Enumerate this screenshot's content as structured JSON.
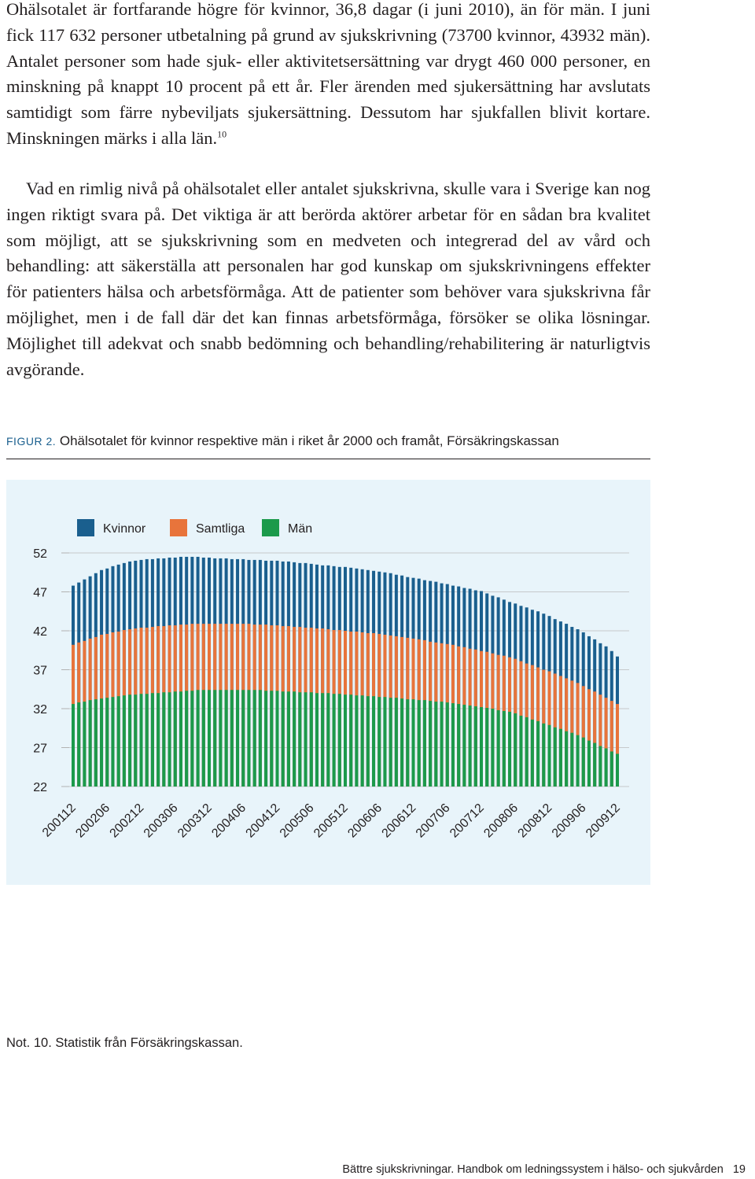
{
  "paragraphs": [
    {
      "text": "Ohälsotalet är fortfarande högre för kvinnor, 36,8 dagar (i juni 2010), än för män. I juni fick 117 632 personer utbetalning på grund av sjukskrivning (73700 kvinnor, 43932 män). Antalet personer som hade sjuk- eller aktivitetsersättning var drygt 460 000 personer, en minskning på knappt 10 procent på ett år. Fler ärenden med sjukersättning har avslutats samtidigt som färre nybeviljats sjukersättning. Dessutom har sjukfallen blivit kortare. Minskningen märks i alla län.",
      "footnote_ref": "10"
    },
    {
      "text": "Vad en rimlig nivå på ohälsotalet eller antalet sjukskrivna, skulle vara i Sverige kan nog ingen riktigt svara på. Det viktiga är att berörda aktörer arbetar för en sådan bra kvalitet som möjligt, att se sjukskrivning som en medveten och integrerad del av vård och behandling: att säkerställa att personalen har god kunskap om sjukskrivningens effekter för patienters hälsa och arbetsförmåga. Att de patienter som behöver vara sjukskrivna får möjlighet, men i de fall där det kan finnas arbetsförmåga, försöker se olika lösningar. Möjlighet till adekvat och snabb bedömning och behandling/rehabilitering är naturligtvis avgörande."
    }
  ],
  "figure": {
    "label": "FIGUR 2.",
    "caption": "Ohälsotalet för kvinnor respektive män i riket år 2000 och framåt, Försäkringskassan"
  },
  "chart_data": {
    "type": "bar",
    "grid": true,
    "ylim": [
      22,
      52
    ],
    "yticks": [
      22,
      27,
      32,
      37,
      42,
      47,
      52
    ],
    "categories": [
      "200112",
      null,
      null,
      null,
      null,
      null,
      "200206",
      null,
      null,
      null,
      null,
      null,
      "200212",
      null,
      null,
      null,
      null,
      null,
      "200306",
      null,
      null,
      null,
      null,
      null,
      "200312",
      null,
      null,
      null,
      null,
      null,
      "200406",
      null,
      null,
      null,
      null,
      null,
      "200412",
      null,
      null,
      null,
      null,
      null,
      "200506",
      null,
      null,
      null,
      null,
      null,
      "200512",
      null,
      null,
      null,
      null,
      null,
      "200606",
      null,
      null,
      null,
      null,
      null,
      "200612",
      null,
      null,
      null,
      null,
      null,
      "200706",
      null,
      null,
      null,
      null,
      null,
      "200712",
      null,
      null,
      null,
      null,
      null,
      "200806",
      null,
      null,
      null,
      null,
      null,
      "200812",
      null,
      null,
      null,
      null,
      null,
      "200906",
      null,
      null,
      null,
      null,
      null,
      "200912"
    ],
    "series": [
      {
        "name": "Kvinnor",
        "color": "#1a5f8e",
        "values": [
          47.8,
          48.2,
          48.6,
          49.0,
          49.4,
          49.8,
          50.0,
          50.3,
          50.5,
          50.7,
          50.9,
          51.0,
          51.1,
          51.2,
          51.2,
          51.3,
          51.3,
          51.4,
          51.4,
          51.5,
          51.5,
          51.5,
          51.5,
          51.4,
          51.4,
          51.3,
          51.3,
          51.3,
          51.2,
          51.2,
          51.2,
          51.1,
          51.1,
          51.1,
          51.0,
          51.0,
          51.0,
          50.9,
          50.9,
          50.8,
          50.7,
          50.7,
          50.6,
          50.5,
          50.4,
          50.4,
          50.3,
          50.2,
          50.2,
          50.1,
          50.0,
          49.9,
          49.8,
          49.7,
          49.6,
          49.5,
          49.4,
          49.2,
          49.1,
          48.9,
          48.8,
          48.7,
          48.5,
          48.4,
          48.3,
          48.1,
          48.0,
          47.8,
          47.7,
          47.5,
          47.4,
          47.2,
          47.1,
          46.8,
          46.5,
          46.3,
          46.0,
          45.7,
          45.5,
          45.2,
          45.0,
          44.7,
          44.5,
          44.2,
          43.9,
          43.5,
          43.2,
          42.9,
          42.5,
          42.2,
          41.8,
          41.3,
          40.9,
          40.4,
          40.0,
          39.4,
          38.7
        ]
      },
      {
        "name": "Samtliga",
        "color": "#e8743b",
        "values": [
          40.2,
          40.5,
          40.7,
          41.0,
          41.2,
          41.5,
          41.6,
          41.8,
          41.9,
          42.1,
          42.2,
          42.3,
          42.4,
          42.4,
          42.5,
          42.6,
          42.6,
          42.7,
          42.7,
          42.8,
          42.8,
          42.9,
          42.9,
          42.9,
          42.9,
          42.9,
          42.9,
          42.9,
          42.9,
          42.9,
          42.9,
          42.9,
          42.8,
          42.8,
          42.8,
          42.7,
          42.7,
          42.6,
          42.6,
          42.5,
          42.5,
          42.4,
          42.4,
          42.3,
          42.3,
          42.2,
          42.1,
          42.1,
          42.0,
          41.9,
          41.9,
          41.8,
          41.7,
          41.7,
          41.6,
          41.5,
          41.4,
          41.3,
          41.2,
          41.1,
          41.0,
          40.9,
          40.8,
          40.6,
          40.5,
          40.4,
          40.3,
          40.2,
          40.0,
          39.9,
          39.7,
          39.6,
          39.4,
          39.3,
          39.1,
          38.9,
          38.8,
          38.6,
          38.4,
          38.1,
          37.8,
          37.6,
          37.3,
          37.0,
          36.8,
          36.5,
          36.2,
          35.9,
          35.6,
          35.3,
          34.9,
          34.5,
          34.2,
          33.8,
          33.4,
          33.0,
          32.6
        ]
      },
      {
        "name": "Män",
        "color": "#1b9a4b",
        "values": [
          32.6,
          32.8,
          32.9,
          33.1,
          33.2,
          33.3,
          33.4,
          33.5,
          33.6,
          33.7,
          33.8,
          33.8,
          33.9,
          33.9,
          34.0,
          34.0,
          34.1,
          34.1,
          34.2,
          34.2,
          34.3,
          34.3,
          34.4,
          34.4,
          34.4,
          34.4,
          34.4,
          34.4,
          34.4,
          34.4,
          34.4,
          34.4,
          34.4,
          34.4,
          34.3,
          34.3,
          34.3,
          34.2,
          34.2,
          34.2,
          34.1,
          34.1,
          34.1,
          34.0,
          34.0,
          34.0,
          33.9,
          33.9,
          33.8,
          33.8,
          33.7,
          33.7,
          33.6,
          33.6,
          33.5,
          33.5,
          33.4,
          33.4,
          33.3,
          33.2,
          33.2,
          33.1,
          33.1,
          33.0,
          32.9,
          32.9,
          32.8,
          32.7,
          32.6,
          32.5,
          32.4,
          32.3,
          32.2,
          32.1,
          32.0,
          31.8,
          31.7,
          31.6,
          31.4,
          31.1,
          30.9,
          30.6,
          30.4,
          30.1,
          29.9,
          29.6,
          29.4,
          29.1,
          28.9,
          28.6,
          28.3,
          27.9,
          27.6,
          27.2,
          26.9,
          26.5,
          26.2
        ]
      }
    ]
  },
  "note": "Not. 10. Statistik från Försäkringskassan.",
  "footer": {
    "title": "Bättre sjukskrivningar. Handbok om ledningssystem i hälso- och sjukvården",
    "page": "19"
  }
}
